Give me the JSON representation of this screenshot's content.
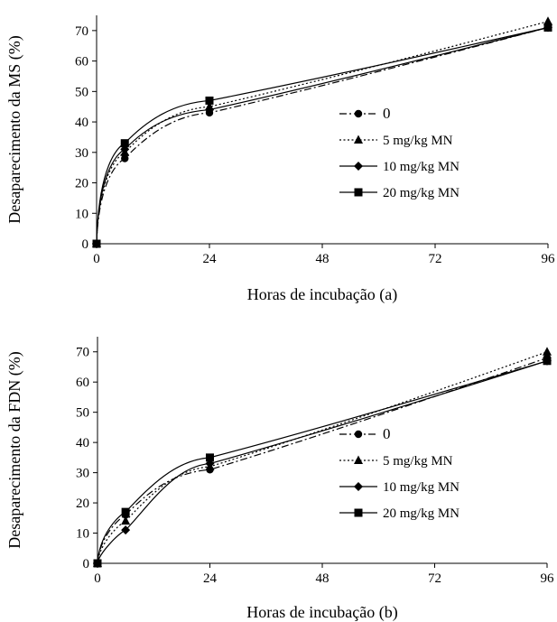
{
  "colors": {
    "ink": "#000000",
    "background": "#ffffff"
  },
  "chart_data": [
    {
      "type": "line",
      "panel": "a",
      "title": "",
      "xlabel": "Horas de incubação (a)",
      "ylabel": "Desaparecimento da MS (%)",
      "x_ticks": [
        0,
        24,
        48,
        72,
        96
      ],
      "y_ticks": [
        0,
        10,
        20,
        30,
        40,
        50,
        60,
        70
      ],
      "xlim": [
        0,
        96
      ],
      "ylim": [
        0,
        75
      ],
      "grid": false,
      "legend_position": "center-right",
      "x": [
        0,
        6,
        24,
        96
      ],
      "series": [
        {
          "name": "0",
          "marker": "circle",
          "line_style": "dash-dot",
          "values": [
            0,
            28,
            43,
            71
          ]
        },
        {
          "name": "5 mg/kg MN",
          "marker": "triangle",
          "line_style": "dotted",
          "values": [
            0,
            30,
            45,
            73
          ]
        },
        {
          "name": "10 mg/kg MN",
          "marker": "diamond",
          "line_style": "solid",
          "values": [
            0,
            31,
            44,
            71
          ]
        },
        {
          "name": "20 mg/kg MN",
          "marker": "square",
          "line_style": "solid",
          "values": [
            0,
            33,
            47,
            71
          ]
        }
      ]
    },
    {
      "type": "line",
      "panel": "b",
      "title": "",
      "xlabel": "Horas de incubação (b)",
      "ylabel": "Desaparecimento da FDN (%)",
      "x_ticks": [
        0,
        24,
        48,
        72,
        96
      ],
      "y_ticks": [
        0,
        10,
        20,
        30,
        40,
        50,
        60,
        70
      ],
      "xlim": [
        0,
        96
      ],
      "ylim": [
        0,
        75
      ],
      "grid": false,
      "legend_position": "center-right",
      "x": [
        0,
        6,
        24,
        96
      ],
      "series": [
        {
          "name": "0",
          "marker": "circle",
          "line_style": "dash-dot",
          "values": [
            0,
            16,
            31,
            68
          ]
        },
        {
          "name": "5 mg/kg MN",
          "marker": "triangle",
          "line_style": "dotted",
          "values": [
            0,
            14,
            32,
            70
          ]
        },
        {
          "name": "10 mg/kg MN",
          "marker": "diamond",
          "line_style": "solid",
          "values": [
            0,
            11,
            33,
            67
          ]
        },
        {
          "name": "20 mg/kg MN",
          "marker": "square",
          "line_style": "solid",
          "values": [
            0,
            17,
            35,
            67
          ]
        }
      ]
    }
  ]
}
